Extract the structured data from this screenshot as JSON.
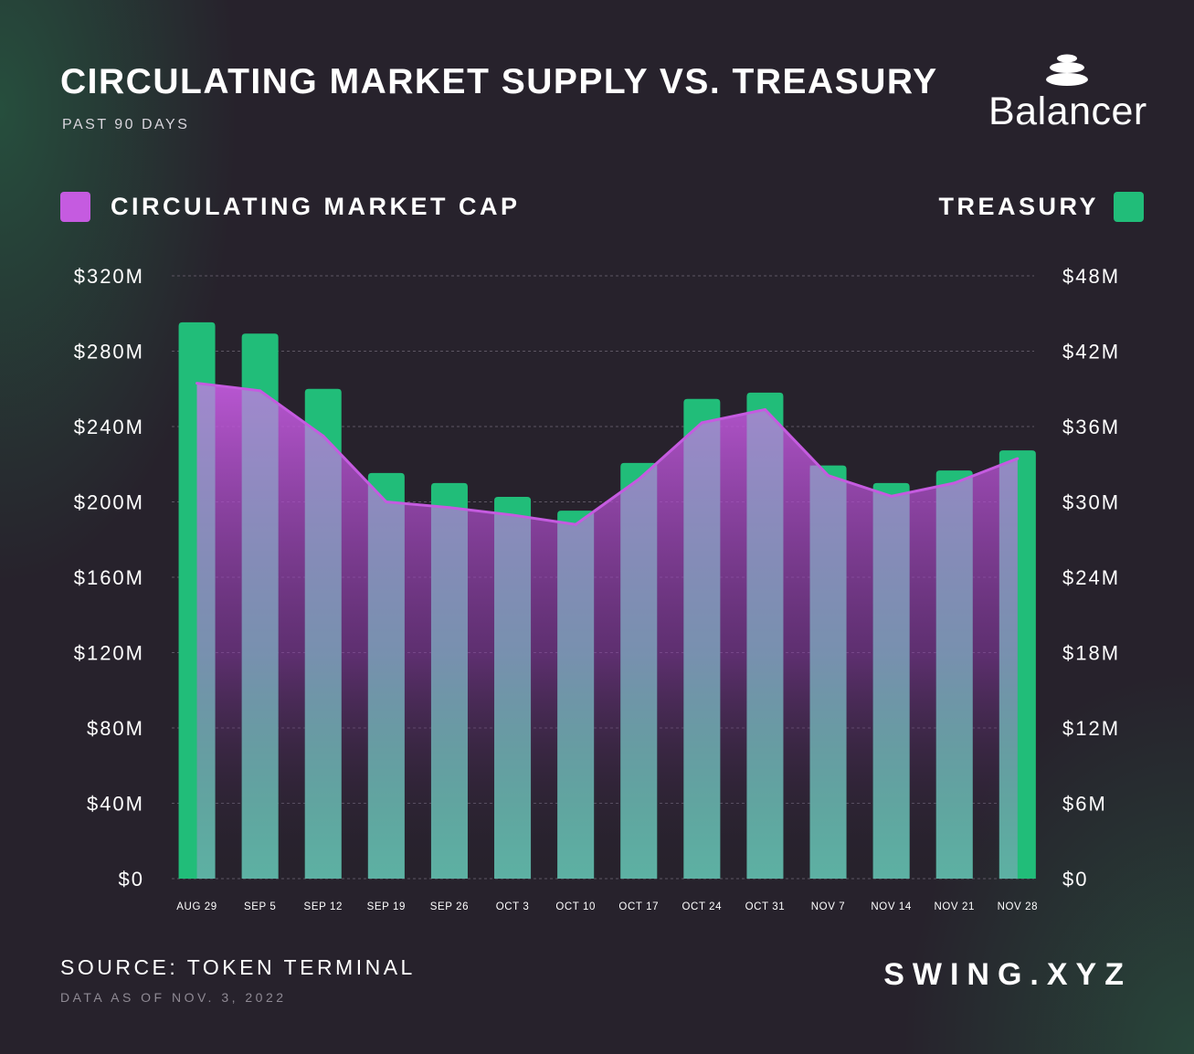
{
  "header": {
    "title": "CIRCULATING MARKET SUPPLY VS. TREASURY",
    "subtitle": "PAST 90 DAYS",
    "brand": "Balancer"
  },
  "legend": {
    "left": {
      "label": "CIRCULATING MARKET CAP",
      "color": "#c55be0"
    },
    "right": {
      "label": "TREASURY",
      "color": "#21bd79"
    }
  },
  "footer": {
    "source": "SOURCE: TOKEN TERMINAL",
    "as_of": "DATA AS OF NOV. 3, 2022",
    "site": "SWING.XYZ"
  },
  "chart_data": {
    "type": "bar",
    "categories": [
      "AUG 29",
      "SEP 5",
      "SEP 12",
      "SEP 19",
      "SEP 26",
      "OCT 3",
      "OCT 10",
      "OCT 17",
      "OCT 24",
      "OCT 31",
      "NOV 7",
      "NOV 14",
      "NOV 21",
      "NOV 28"
    ],
    "series": [
      {
        "name": "TREASURY",
        "type": "bar",
        "axis": "right",
        "color": "#21bd79",
        "values": [
          44.3,
          43.4,
          39.0,
          32.3,
          31.5,
          30.4,
          29.3,
          33.1,
          38.2,
          38.7,
          32.9,
          31.5,
          32.5,
          34.1
        ]
      },
      {
        "name": "CIRCULATING MARKET CAP",
        "type": "area",
        "axis": "left",
        "color": "#c55be0",
        "values": [
          263,
          259,
          235,
          200,
          197,
          193,
          188,
          212,
          242,
          249,
          214,
          203,
          210,
          223
        ]
      }
    ],
    "y_left": {
      "min": 0,
      "max": 320,
      "ticks": [
        "$320M",
        "$280M",
        "$240M",
        "$200M",
        "$160M",
        "$120M",
        "$80M",
        "$40M",
        "$0"
      ]
    },
    "y_right": {
      "min": 0,
      "max": 48,
      "ticks": [
        "$48M",
        "$42M",
        "$36M",
        "$30M",
        "$24M",
        "$18M",
        "$12M",
        "$6M",
        "$0"
      ]
    },
    "grid": "horizontal-dashed",
    "legend_position": "top"
  }
}
